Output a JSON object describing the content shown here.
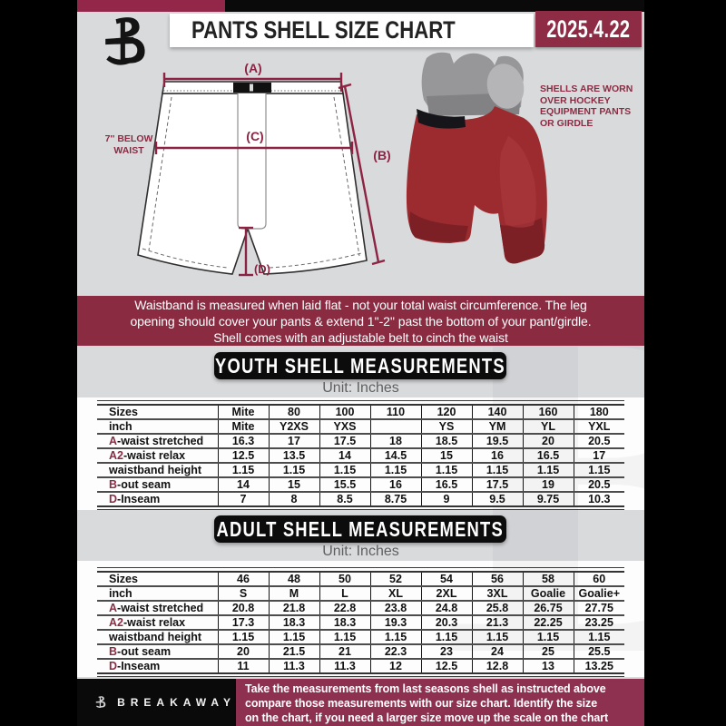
{
  "header": {
    "title": "PANTS SHELL SIZE CHART",
    "date": "2025.4.22"
  },
  "figure": {
    "labels": {
      "a": "(A)",
      "b": "(B)",
      "c": "(C)",
      "d": "(D)"
    },
    "below_waist": "7'' BELOW\nWAIST",
    "photo_note": "SHELLS ARE WORN\nOVER HOCKEY\nEQUIPMENT PANTS\nOR GIRDLE"
  },
  "notice": "Waistband is measured when laid flat - not your total waist circumference. The leg\nopening should cover your pants & extend 1''-2'' past the bottom of your pant/girdle.\nShell comes with an adjustable belt to cinch the waist",
  "youth": {
    "title": "YOUTH SHELL MEASUREMENTS",
    "unit": "Unit: Inches",
    "table": {
      "rows": [
        {
          "prefix": "",
          "label": "Sizes",
          "cells": [
            "Mite",
            "80",
            "100",
            "110",
            "120",
            "140",
            "160",
            "180"
          ]
        },
        {
          "prefix": "",
          "label": "inch",
          "cells": [
            "Mite",
            "Y2XS",
            "YXS",
            "",
            "YS",
            "YM",
            "YL",
            "YXL"
          ]
        },
        {
          "prefix": "A",
          "label": "-waist stretched",
          "cells": [
            "16.3",
            "17",
            "17.5",
            "18",
            "18.5",
            "19.5",
            "20",
            "20.5"
          ]
        },
        {
          "prefix": "A2",
          "label": "-waist relax",
          "cells": [
            "12.5",
            "13.5",
            "14",
            "14.5",
            "15",
            "16",
            "16.5",
            "17"
          ]
        },
        {
          "prefix": "",
          "label": "waistband height",
          "cells": [
            "1.15",
            "1.15",
            "1.15",
            "1.15",
            "1.15",
            "1.15",
            "1.15",
            "1.15"
          ]
        },
        {
          "prefix": "B",
          "label": "-out seam",
          "cells": [
            "14",
            "15",
            "15.5",
            "16",
            "16.5",
            "17.5",
            "19",
            "20.5"
          ]
        },
        {
          "prefix": "D",
          "label": "-Inseam",
          "cells": [
            "7",
            "8",
            "8.5",
            "8.75",
            "9",
            "9.5",
            "9.75",
            "10.3"
          ]
        }
      ]
    }
  },
  "adult": {
    "title": "ADULT SHELL MEASUREMENTS",
    "unit": "Unit: Inches",
    "table": {
      "rows": [
        {
          "prefix": "",
          "label": "Sizes",
          "cells": [
            "46",
            "48",
            "50",
            "52",
            "54",
            "56",
            "58",
            "60"
          ]
        },
        {
          "prefix": "",
          "label": "inch",
          "cells": [
            "S",
            "M",
            "L",
            "XL",
            "2XL",
            "3XL",
            "Goalie",
            "Goalie+"
          ]
        },
        {
          "prefix": "A",
          "label": "-waist stretched",
          "cells": [
            "20.8",
            "21.8",
            "22.8",
            "23.8",
            "24.8",
            "25.8",
            "26.75",
            "27.75"
          ]
        },
        {
          "prefix": "A2",
          "label": "-waist relax",
          "cells": [
            "17.3",
            "18.3",
            "18.3",
            "19.3",
            "20.3",
            "21.3",
            "22.25",
            "23.25"
          ]
        },
        {
          "prefix": "",
          "label": "waistband height",
          "cells": [
            "1.15",
            "1.15",
            "1.15",
            "1.15",
            "1.15",
            "1.15",
            "1.15",
            "1.15"
          ]
        },
        {
          "prefix": "B",
          "label": "-out seam",
          "cells": [
            "20",
            "21.5",
            "21",
            "22.3",
            "23",
            "24",
            "25",
            "25.5"
          ]
        },
        {
          "prefix": "D",
          "label": "-Inseam",
          "cells": [
            "11",
            "11.3",
            "11.3",
            "12",
            "12.5",
            "12.8",
            "13",
            "13.25"
          ]
        }
      ]
    }
  },
  "footer": {
    "brand": "BREAKAWAY",
    "text": "Take the measurements from last seasons shell as instructed above\ncompare those measurements  with our size chart. Identify the size\non the chart, if you need a larger size move up the scale on the chart"
  },
  "colors": {
    "accent": "#8C2B43",
    "background": "#D9DADC",
    "black": "#0D0D0D",
    "shell_red": "#9C2B2F"
  },
  "watermark_letter": "B"
}
